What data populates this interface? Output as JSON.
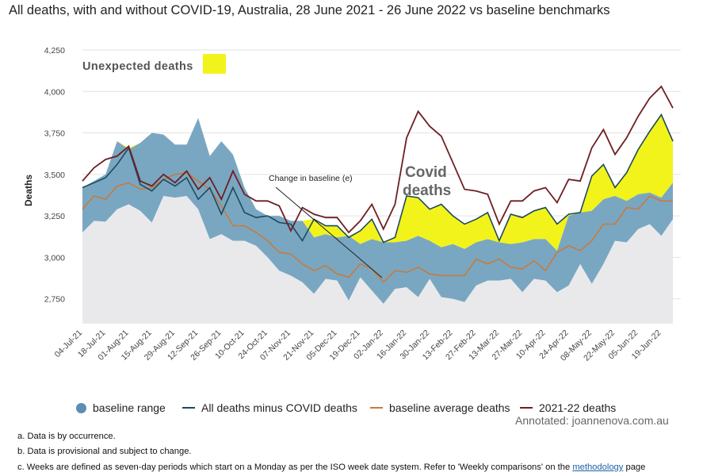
{
  "header": {
    "title": "All deaths, with and without COVID-19, Australia, 28 June 2021 - 26 June 2022 vs baseline benchmarks"
  },
  "chart_data": {
    "type": "area",
    "title": "All deaths, with and without COVID-19, Australia, 28 June 2021 - 26 June 2022 vs baseline benchmarks",
    "xlabel": "",
    "ylabel": "Deaths",
    "ylim": [
      2600,
      4250
    ],
    "yticks": [
      2750,
      3000,
      3250,
      3500,
      3750,
      4000,
      4250
    ],
    "ytick_labels": [
      "2,750",
      "3,000",
      "3,250",
      "3,500",
      "3,750",
      "4,000",
      "4,250"
    ],
    "grid": true,
    "legend_position": "bottom",
    "x_tick_labels": [
      "04-Jul-21",
      "18-Jul-21",
      "01-Aug-21",
      "15-Aug-21",
      "29-Aug-21",
      "12-Sep-21",
      "26-Sep-21",
      "10-Oct-21",
      "24-Oct-21",
      "07-Nov-21",
      "21-Nov-21",
      "05-Dec-21",
      "19-Dec-21",
      "02-Jan-22",
      "16-Jan-22",
      "30-Jan-22",
      "13-Feb-22",
      "27-Feb-22",
      "13-Mar-22",
      "27-Mar-22",
      "10-Apr-22",
      "24-Apr-22",
      "08-May-22",
      "22-May-22",
      "05-Jun-22",
      "19-Jun-22"
    ],
    "x": [
      "04-Jul-21",
      "11-Jul-21",
      "18-Jul-21",
      "25-Jul-21",
      "01-Aug-21",
      "08-Aug-21",
      "15-Aug-21",
      "22-Aug-21",
      "29-Aug-21",
      "05-Sep-21",
      "12-Sep-21",
      "19-Sep-21",
      "26-Sep-21",
      "03-Oct-21",
      "10-Oct-21",
      "17-Oct-21",
      "24-Oct-21",
      "31-Oct-21",
      "07-Nov-21",
      "14-Nov-21",
      "21-Nov-21",
      "28-Nov-21",
      "05-Dec-21",
      "12-Dec-21",
      "19-Dec-21",
      "26-Dec-21",
      "02-Jan-22",
      "09-Jan-22",
      "16-Jan-22",
      "23-Jan-22",
      "30-Jan-22",
      "06-Feb-22",
      "13-Feb-22",
      "20-Feb-22",
      "27-Feb-22",
      "06-Mar-22",
      "13-Mar-22",
      "20-Mar-22",
      "27-Mar-22",
      "03-Apr-22",
      "10-Apr-22",
      "17-Apr-22",
      "24-Apr-22",
      "01-May-22",
      "08-May-22",
      "15-May-22",
      "22-May-22",
      "29-May-22",
      "05-Jun-22",
      "12-Jun-22",
      "19-Jun-22",
      "26-Jun-22"
    ],
    "series": [
      {
        "name": "baseline range",
        "type": "range",
        "low": [
          3150,
          3220,
          3215,
          3290,
          3320,
          3280,
          3210,
          3370,
          3360,
          3370,
          3290,
          3110,
          3140,
          3100,
          3100,
          3070,
          3000,
          2920,
          2890,
          2850,
          2780,
          2870,
          2860,
          2740,
          2880,
          2800,
          2720,
          2810,
          2820,
          2760,
          2870,
          2760,
          2750,
          2730,
          2830,
          2860,
          2860,
          2870,
          2790,
          2870,
          2860,
          2790,
          2830,
          2960,
          2840,
          2960,
          3100,
          3090,
          3170,
          3200,
          3130,
          3230
        ],
        "high": [
          3420,
          3460,
          3500,
          3700,
          3650,
          3690,
          3750,
          3740,
          3680,
          3680,
          3840,
          3610,
          3700,
          3620,
          3420,
          3290,
          3250,
          3250,
          3220,
          3220,
          3120,
          3140,
          3120,
          3130,
          3080,
          3110,
          3090,
          3090,
          3100,
          3130,
          3100,
          3060,
          3080,
          3050,
          3090,
          3110,
          3090,
          3080,
          3090,
          3110,
          3110,
          3040,
          3250,
          3270,
          3280,
          3350,
          3370,
          3340,
          3380,
          3390,
          3360,
          3450
        ]
      },
      {
        "name": "All deaths minus COVID deaths",
        "type": "line",
        "values": [
          3420,
          3450,
          3480,
          3560,
          3660,
          3440,
          3400,
          3470,
          3430,
          3480,
          3350,
          3420,
          3260,
          3420,
          3270,
          3240,
          3250,
          3210,
          3200,
          3100,
          3230,
          3190,
          3190,
          3120,
          3160,
          3230,
          3090,
          3120,
          3370,
          3360,
          3290,
          3320,
          3250,
          3200,
          3230,
          3270,
          3100,
          3260,
          3240,
          3280,
          3300,
          3200,
          3260,
          3270,
          3490,
          3560,
          3420,
          3510,
          3650,
          3760,
          3860,
          3700
        ]
      },
      {
        "name": "baseline average deaths",
        "type": "line",
        "values": [
          3290,
          3370,
          3350,
          3430,
          3450,
          3410,
          3420,
          3470,
          3500,
          3510,
          3460,
          3410,
          3310,
          3190,
          3190,
          3150,
          3100,
          3030,
          3020,
          2960,
          2920,
          2950,
          2900,
          2880,
          2960,
          2930,
          2850,
          2920,
          2910,
          2940,
          2900,
          2890,
          2890,
          2890,
          2990,
          2960,
          2990,
          2940,
          2930,
          2980,
          2920,
          3030,
          3070,
          3040,
          3100,
          3200,
          3200,
          3300,
          3290,
          3370,
          3340,
          3340
        ]
      },
      {
        "name": "2021-22 deaths",
        "type": "line",
        "values": [
          3460,
          3540,
          3590,
          3610,
          3670,
          3460,
          3430,
          3500,
          3450,
          3520,
          3410,
          3480,
          3350,
          3520,
          3380,
          3340,
          3340,
          3310,
          3160,
          3300,
          3260,
          3240,
          3240,
          3150,
          3220,
          3320,
          3170,
          3320,
          3720,
          3880,
          3790,
          3730,
          3570,
          3410,
          3400,
          3380,
          3200,
          3340,
          3340,
          3400,
          3420,
          3330,
          3470,
          3460,
          3660,
          3770,
          3620,
          3720,
          3850,
          3960,
          4030,
          3900
        ]
      }
    ],
    "shaded_region": {
      "name": "Unexpected deaths",
      "color": "#f3f31c",
      "between": [
        "All deaths minus COVID deaths",
        "baseline range"
      ]
    },
    "annotations": [
      {
        "text": "Unexpected deaths"
      },
      {
        "text": "Change in baseline (e)"
      },
      {
        "text": "Covid"
      },
      {
        "text": "deaths"
      }
    ],
    "colors": {
      "baseline_range": "#6e9fbd",
      "baseline_legend": "#5a8fb3",
      "below_range": "#e9e9ec",
      "all_minus_covid": "#1d4a5c",
      "baseline_average": "#c87a3c",
      "deaths_2021_22": "#6e1f23",
      "unexpected": "#f3f31c",
      "grid": "#e3e3e3"
    }
  },
  "legend": {
    "items": [
      {
        "label": "baseline range",
        "color": "#5a8fb3"
      },
      {
        "label": "All deaths minus COVID deaths",
        "color": "#1d4a5c"
      },
      {
        "label": "baseline average deaths",
        "color": "#c87a3c"
      },
      {
        "label": "2021-22 deaths",
        "color": "#6e1f23"
      }
    ]
  },
  "annotation_credit": "Annotated: joannenova.com.au",
  "notes": {
    "a": "a. Data is by occurrence.",
    "b": "b. Data is provisional and subject to change.",
    "c_before": "c. Weeks are defined as seven-day periods which start on a Monday as per the ISO week date system. Refer to 'Weekly comparisons' on the ",
    "c_link": "methodology",
    "c_after": " page"
  }
}
